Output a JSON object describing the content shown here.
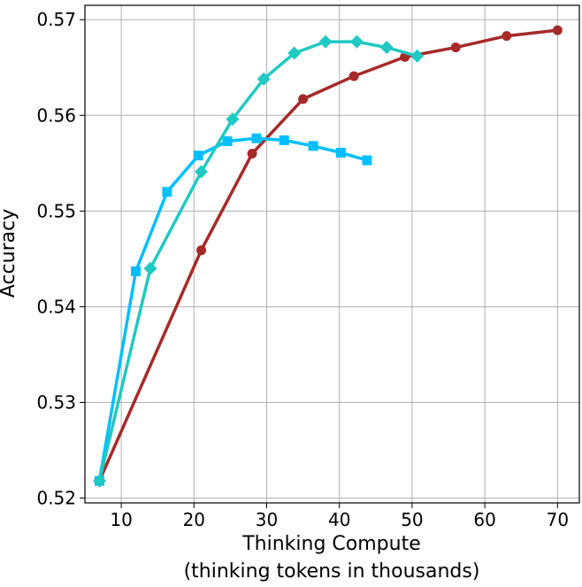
{
  "chart_data": {
    "type": "line",
    "title": "",
    "xlabel_line1": "Thinking Compute",
    "xlabel_line2": "(thinking tokens in thousands)",
    "ylabel": "Accuracy",
    "xlim": [
      5,
      73
    ],
    "ylim": [
      0.5195,
      0.5715
    ],
    "xticks": [
      10,
      20,
      30,
      40,
      50,
      60,
      70
    ],
    "yticks": [
      0.52,
      0.53,
      0.54,
      0.55,
      0.56,
      0.57
    ],
    "ytick_labels": [
      "0.52",
      "0.53",
      "0.54",
      "0.55",
      "0.56",
      "0.57"
    ],
    "grid": true,
    "series": [
      {
        "color": "#a52a2a",
        "marker": "circle",
        "x": [
          7.0,
          21.0,
          28.0,
          35.0,
          42.0,
          49.0,
          56.0,
          63.0,
          70.0
        ],
        "y": [
          0.5218,
          0.5459,
          0.556,
          0.5617,
          0.5641,
          0.5661,
          0.5671,
          0.5683,
          0.5689
        ]
      },
      {
        "color": "#00bfff",
        "marker": "square",
        "x": [
          7.0,
          12.0,
          16.3,
          20.6,
          24.6,
          28.6,
          32.4,
          36.4,
          40.2,
          43.8
        ],
        "y": [
          0.5218,
          0.5437,
          0.552,
          0.5558,
          0.5573,
          0.5576,
          0.5574,
          0.5568,
          0.5561,
          0.5553
        ]
      },
      {
        "color": "#20c9c2",
        "marker": "diamond",
        "x": [
          7.0,
          14.0,
          21.0,
          25.3,
          29.6,
          33.8,
          38.1,
          42.4,
          46.5,
          50.7
        ],
        "y": [
          0.5218,
          0.544,
          0.5541,
          0.5596,
          0.5638,
          0.5665,
          0.5677,
          0.5677,
          0.5671,
          0.5662
        ]
      }
    ]
  }
}
